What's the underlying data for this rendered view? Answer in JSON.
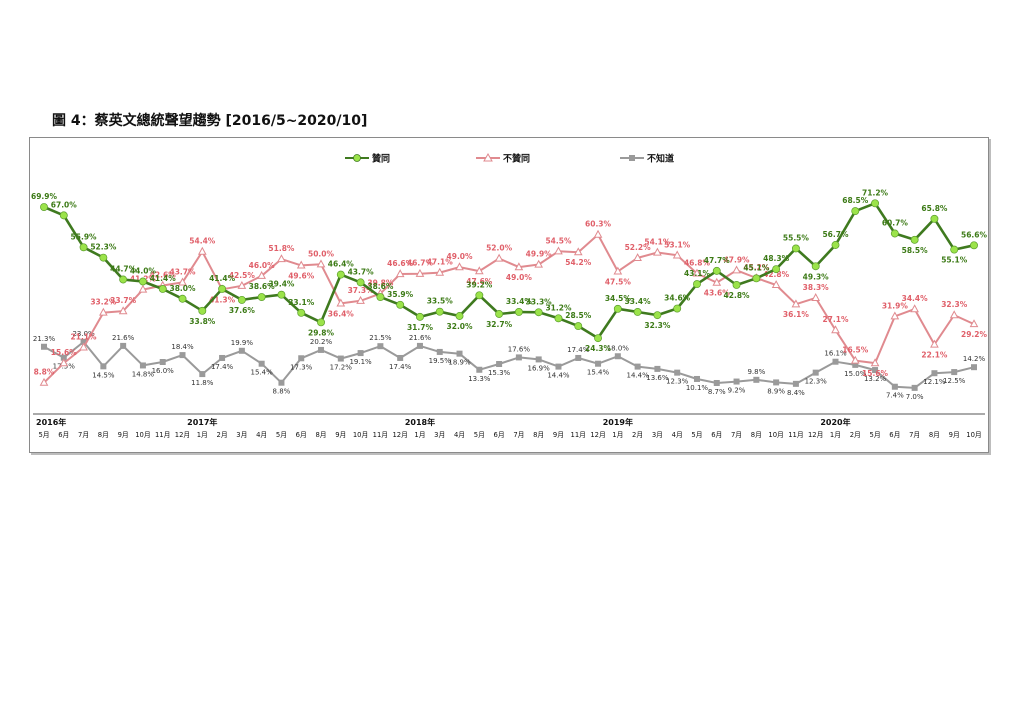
{
  "title": "圖 4：蔡英文總統聲望趨勢 [2016/5~2020/10]",
  "colors": {
    "approve": "#3f7a1f",
    "approve_marker": "#9be34a",
    "disapprove": "#e08a8f",
    "unknown": "#9a9a9a"
  },
  "chart_data": {
    "type": "line",
    "categories": [
      "5月",
      "6月",
      "7月",
      "8月",
      "9月",
      "10月",
      "11月",
      "12月",
      "1月",
      "2月",
      "3月",
      "4月",
      "5月",
      "6月",
      "8月",
      "9月",
      "10月",
      "11月",
      "12月",
      "1月",
      "3月",
      "4月",
      "5月",
      "6月",
      "7月",
      "8月",
      "9月",
      "11月",
      "12月",
      "1月",
      "2月",
      "3月",
      "4月",
      "5月",
      "6月",
      "7月",
      "8月",
      "10月",
      "11月",
      "12月",
      "1月",
      "2月",
      "5月",
      "6月",
      "7月",
      "8月",
      "9月",
      "10月"
    ],
    "year_labels": [
      {
        "index": 0,
        "label": "2016年"
      },
      {
        "index": 8,
        "label": "2017年"
      },
      {
        "index": 19,
        "label": "2018年"
      },
      {
        "index": 29,
        "label": "2019年"
      },
      {
        "index": 40,
        "label": "2020年"
      }
    ],
    "ylim": [
      0,
      80
    ],
    "legend_position": "top",
    "series": [
      {
        "name": "贊同",
        "key": "approve",
        "values": [
          69.9,
          67.0,
          55.9,
          52.3,
          44.7,
          44.0,
          41.4,
          38.0,
          33.8,
          41.4,
          37.6,
          38.6,
          39.4,
          33.1,
          29.8,
          46.4,
          43.7,
          38.6,
          35.9,
          31.7,
          33.5,
          32.0,
          39.2,
          32.7,
          33.4,
          33.3,
          31.2,
          28.5,
          24.3,
          34.5,
          33.4,
          32.3,
          34.6,
          43.1,
          47.7,
          42.8,
          45.1,
          48.3,
          55.5,
          49.3,
          56.7,
          68.5,
          71.2,
          60.7,
          58.5,
          65.8,
          55.1,
          56.6
        ]
      },
      {
        "name": "不贊同",
        "key": "disapprove",
        "values": [
          8.8,
          15.6,
          21.1,
          33.2,
          33.7,
          41.2,
          42.6,
          43.7,
          54.4,
          41.3,
          42.5,
          46.0,
          51.8,
          49.6,
          50.0,
          36.4,
          37.3,
          39.8,
          46.6,
          46.7,
          47.1,
          49.0,
          47.6,
          52.0,
          49.0,
          49.9,
          54.5,
          54.2,
          60.3,
          47.5,
          52.2,
          54.1,
          53.1,
          46.8,
          43.6,
          47.9,
          45.2,
          42.8,
          36.1,
          38.3,
          27.1,
          16.5,
          15.6,
          31.9,
          34.4,
          22.1,
          32.3,
          29.2
        ]
      },
      {
        "name": "不知道",
        "key": "unknown",
        "values": [
          21.3,
          17.5,
          23.0,
          14.5,
          21.6,
          14.8,
          16.0,
          18.4,
          11.8,
          17.4,
          19.9,
          15.4,
          8.8,
          17.3,
          20.2,
          17.2,
          19.1,
          21.5,
          17.4,
          21.6,
          19.5,
          18.9,
          13.3,
          15.3,
          17.6,
          16.9,
          14.4,
          17.4,
          15.4,
          18.0,
          14.4,
          13.6,
          12.3,
          10.1,
          8.7,
          9.2,
          9.8,
          8.9,
          8.4,
          12.3,
          16.1,
          15.0,
          13.2,
          7.4,
          7.0,
          12.1,
          12.5,
          14.2
        ]
      }
    ]
  }
}
